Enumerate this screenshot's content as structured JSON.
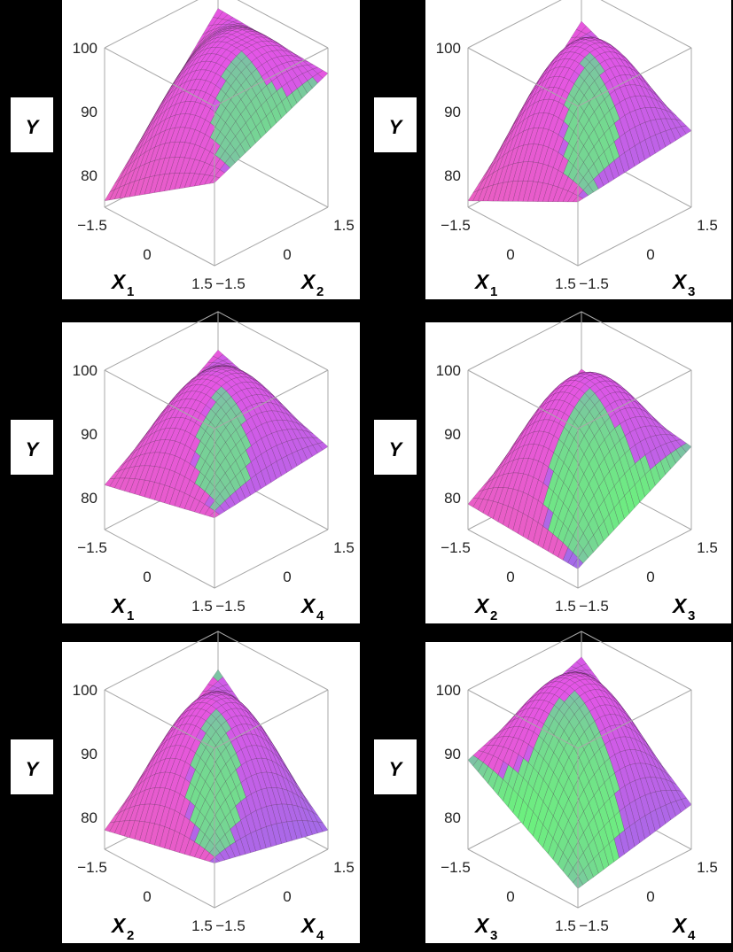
{
  "figure": {
    "description_label": "",
    "colors": {
      "top": "#e455e6",
      "mid": "#9a6ee8",
      "green": "#6cf07e",
      "pink": "#ea5fbf",
      "mesh": "#3a1d3a"
    }
  },
  "chart_data": [
    {
      "type": "surface3d",
      "panel": "p1",
      "z_label": "Y",
      "x_label": "X",
      "x_sub": "1",
      "y_label": "X",
      "y_sub": "2",
      "z_ticks": [
        "80",
        "90",
        "100"
      ],
      "x_ticks": [
        "−1.5",
        "0",
        "1.5"
      ],
      "y_ticks": [
        "−1.5",
        "0",
        "1.5"
      ],
      "xlim": [
        -1.5,
        1.5
      ],
      "ylim": [
        -1.5,
        1.5
      ],
      "zlim": [
        75,
        100
      ],
      "surface": {
        "peak": 99,
        "corners": {
          "left": 76,
          "front": 88,
          "right": 96,
          "back": 97
        }
      }
    },
    {
      "type": "surface3d",
      "panel": "p2",
      "z_label": "Y",
      "x_label": "X",
      "x_sub": "1",
      "y_label": "X",
      "y_sub": "3",
      "z_ticks": [
        "80",
        "90",
        "100"
      ],
      "x_ticks": [
        "−1.5",
        "0",
        "1.5"
      ],
      "y_ticks": [
        "−1.5",
        "0",
        "1.5"
      ],
      "xlim": [
        -1.5,
        1.5
      ],
      "ylim": [
        -1.5,
        1.5
      ],
      "zlim": [
        75,
        100
      ],
      "surface": {
        "peak": 99,
        "corners": {
          "left": 76,
          "front": 85,
          "right": 87,
          "back": 95
        }
      }
    },
    {
      "type": "surface3d",
      "panel": "p3",
      "z_label": "Y",
      "x_label": "X",
      "x_sub": "1",
      "y_label": "X",
      "y_sub": "4",
      "z_ticks": [
        "80",
        "90",
        "100"
      ],
      "x_ticks": [
        "−1.5",
        "0",
        "1.5"
      ],
      "y_ticks": [
        "−1.5",
        "0",
        "1.5"
      ],
      "xlim": [
        -1.5,
        1.5
      ],
      "ylim": [
        -1.5,
        1.5
      ],
      "zlim": [
        75,
        100
      ],
      "surface": {
        "peak": 98,
        "corners": {
          "left": 82,
          "front": 86,
          "right": 88,
          "back": 94
        }
      }
    },
    {
      "type": "surface3d",
      "panel": "p4",
      "z_label": "Y",
      "x_label": "X",
      "x_sub": "2",
      "y_label": "X",
      "y_sub": "3",
      "z_ticks": [
        "80",
        "90",
        "100"
      ],
      "x_ticks": [
        "−1.5",
        "0",
        "1.5"
      ],
      "y_ticks": [
        "−1.5",
        "0",
        "1.5"
      ],
      "xlim": [
        -1.5,
        1.5
      ],
      "ylim": [
        -1.5,
        1.5
      ],
      "zlim": [
        75,
        100
      ],
      "surface": {
        "peak": 97,
        "corners": {
          "left": 79,
          "front": 78,
          "right": 88,
          "back": 91
        }
      }
    },
    {
      "type": "surface3d",
      "panel": "p5",
      "z_label": "Y",
      "x_label": "X",
      "x_sub": "2",
      "y_label": "X",
      "y_sub": "4",
      "z_ticks": [
        "80",
        "90",
        "100"
      ],
      "x_ticks": [
        "−1.5",
        "0",
        "1.5"
      ],
      "y_ticks": [
        "−1.5",
        "0",
        "1.5"
      ],
      "xlim": [
        -1.5,
        1.5
      ],
      "ylim": [
        -1.5,
        1.5
      ],
      "zlim": [
        75,
        100
      ],
      "surface": {
        "peak": 97,
        "corners": {
          "left": 78,
          "front": 82,
          "right": 78,
          "back": 94
        }
      }
    },
    {
      "type": "surface3d",
      "panel": "p6",
      "z_label": "Y",
      "x_label": "X",
      "x_sub": "3",
      "y_label": "X",
      "y_sub": "4",
      "z_ticks": [
        "80",
        "90",
        "100"
      ],
      "x_ticks": [
        "−1.5",
        "0",
        "1.5"
      ],
      "y_ticks": [
        "−1.5",
        "0",
        "1.5"
      ],
      "xlim": [
        -1.5,
        1.5
      ],
      "ylim": [
        -1.5,
        1.5
      ],
      "zlim": [
        75,
        100
      ],
      "surface": {
        "peak": 99,
        "corners": {
          "left": 89,
          "front": 78,
          "right": 82,
          "back": 96
        }
      }
    }
  ]
}
